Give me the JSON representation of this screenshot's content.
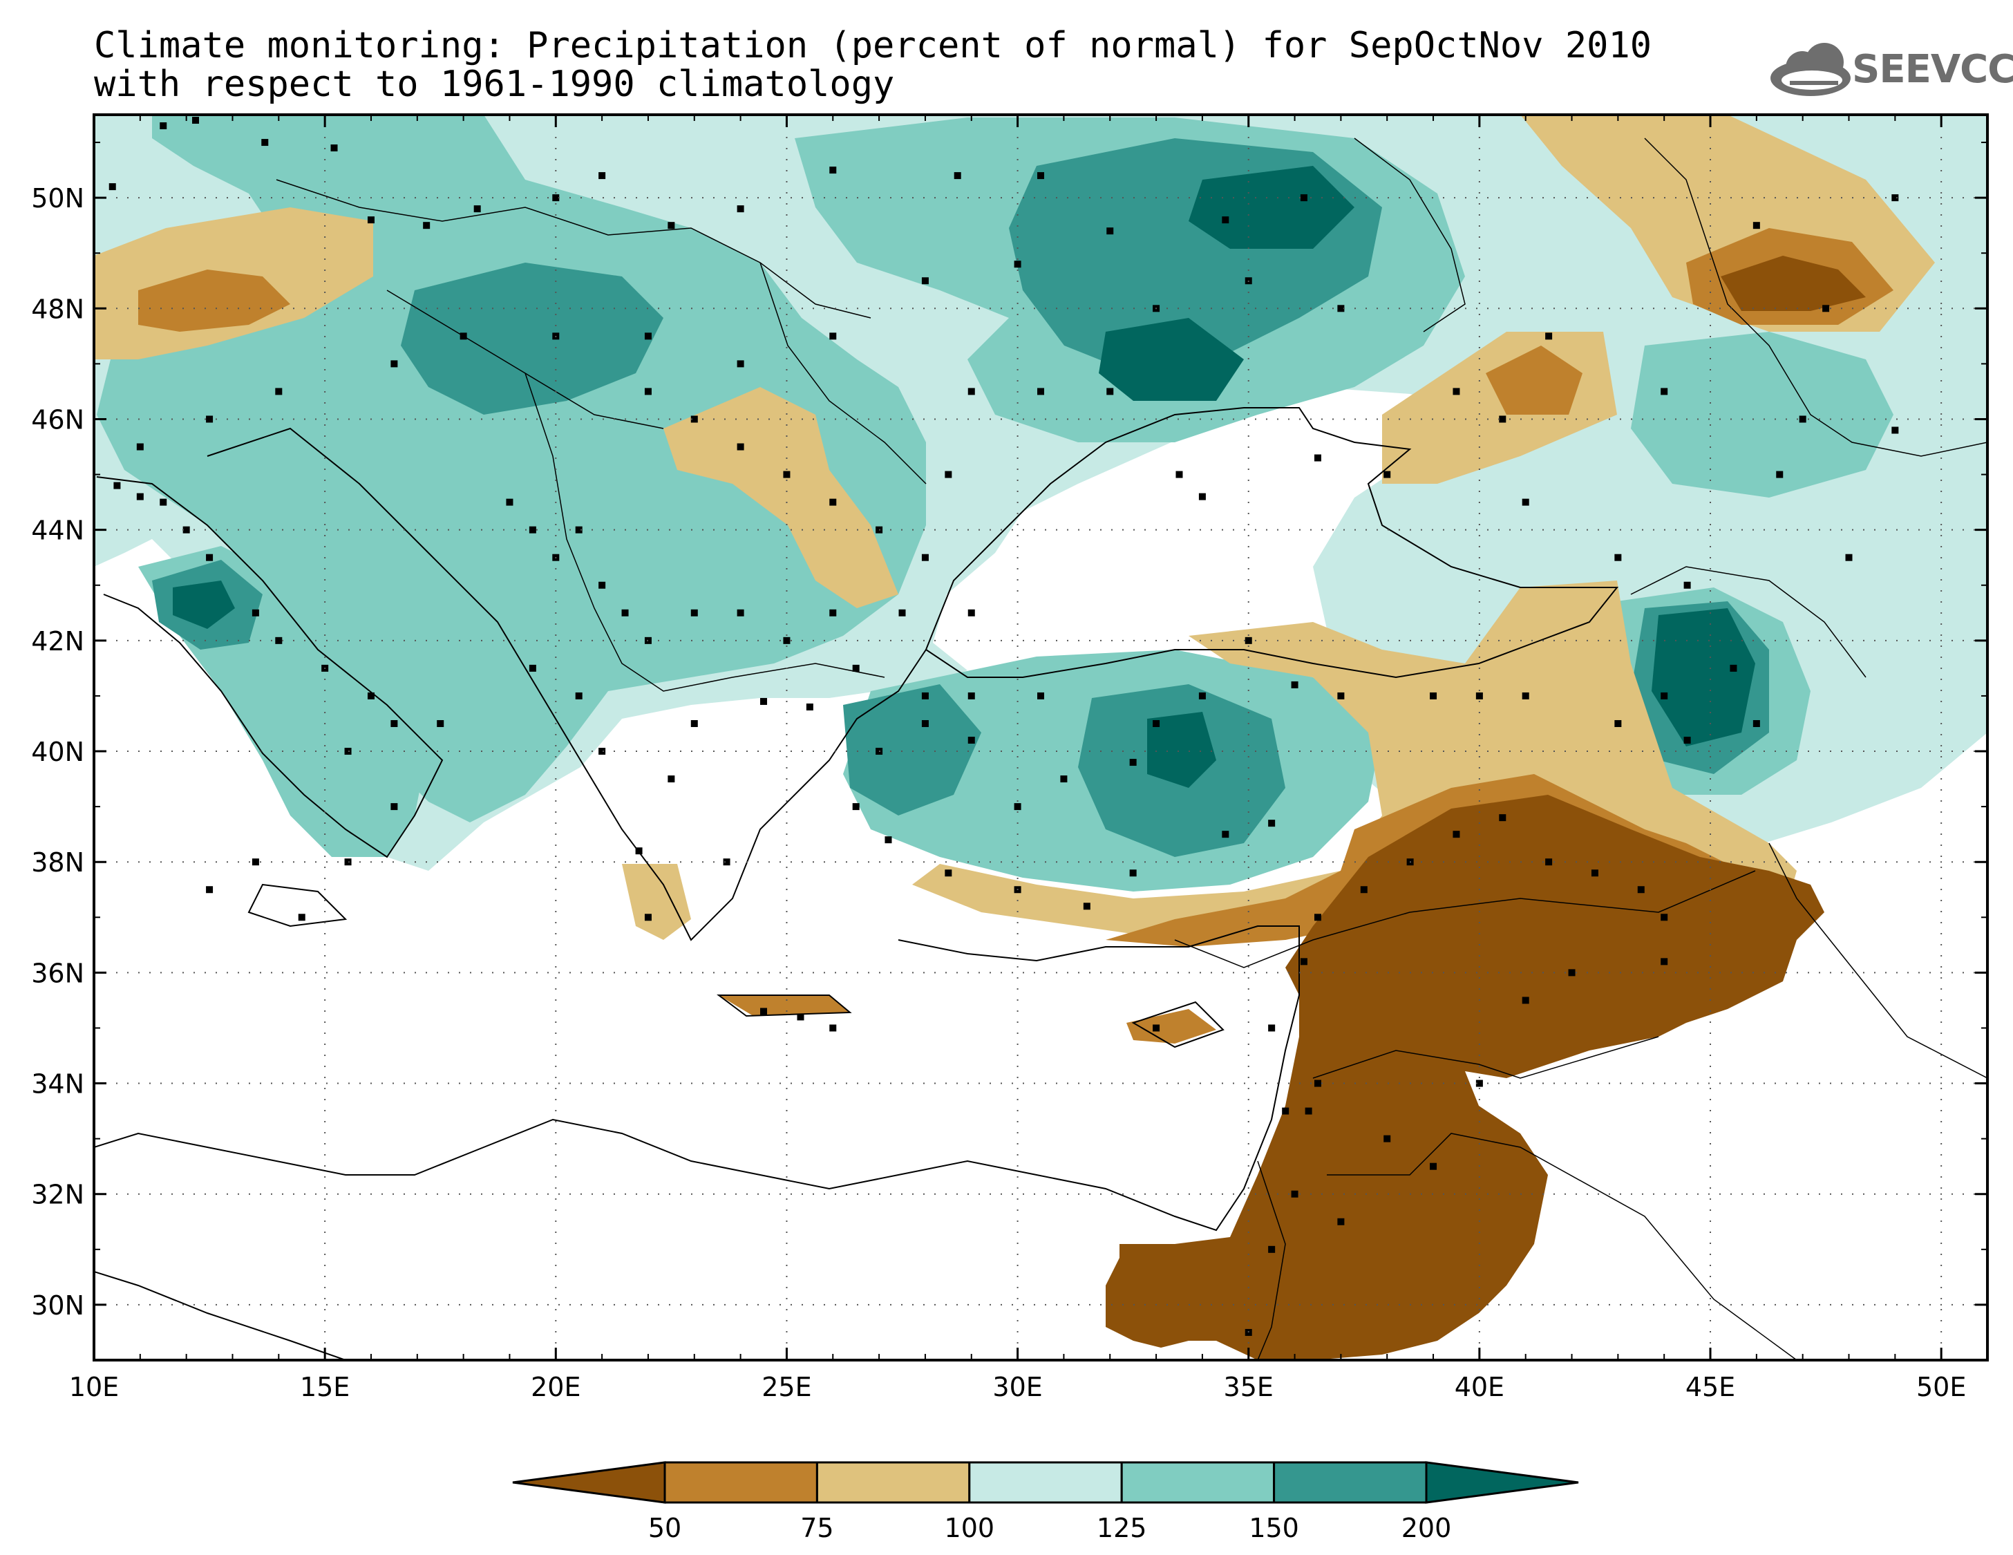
{
  "title": {
    "line1": "Climate monitoring: Precipitation (percent of normal) for SepOctNov 2010",
    "line2": "with respect to 1961-1990 climatology"
  },
  "logo": {
    "text": "SEEVCCC",
    "icon": "cloud-icon"
  },
  "map": {
    "lon_range": [
      10,
      51
    ],
    "lat_range": [
      29,
      51.5
    ],
    "lon_ticks": [
      "10E",
      "15E",
      "20E",
      "25E",
      "30E",
      "35E",
      "40E",
      "45E",
      "50E"
    ],
    "lat_ticks": [
      "30N",
      "32N",
      "34N",
      "36N",
      "38N",
      "40N",
      "42N",
      "44N",
      "46N",
      "48N",
      "50N"
    ],
    "grid": "dotted"
  },
  "colorbar": {
    "labels": [
      "50",
      "75",
      "100",
      "125",
      "150",
      "200"
    ],
    "colors": [
      "#8c510a",
      "#bf812d",
      "#dfc27d",
      "#c7eae5",
      "#80cdc1",
      "#35978f",
      "#01665e"
    ]
  }
}
